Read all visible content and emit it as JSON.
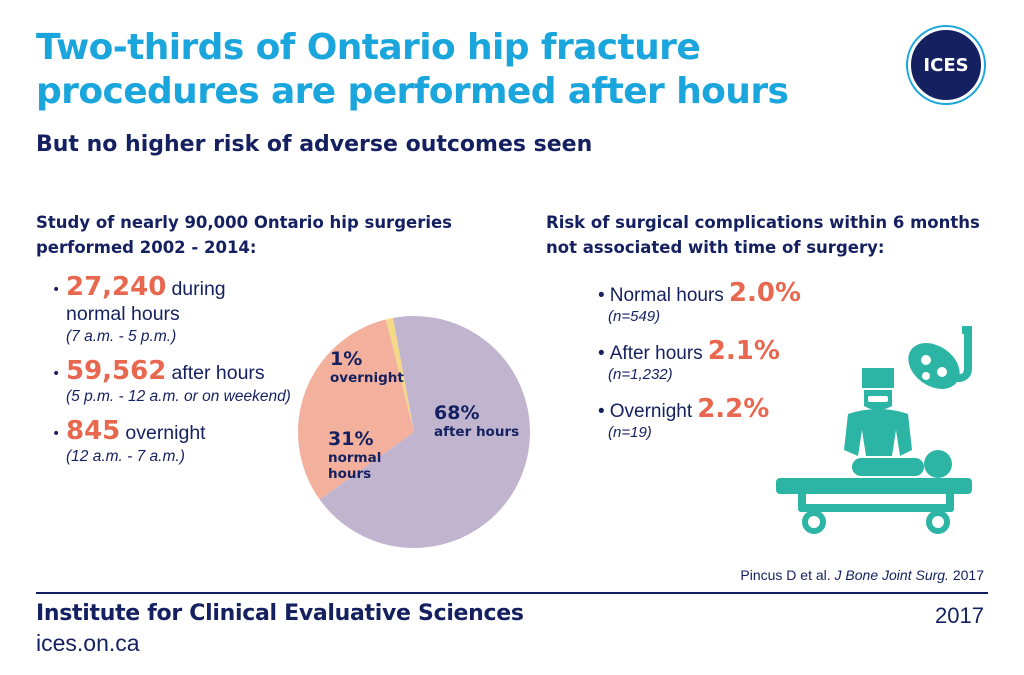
{
  "header": {
    "title": "Two-thirds of Ontario hip fracture procedures are performed after hours",
    "subtitle": "But no higher risk of adverse outcomes seen",
    "logo_text": "ICES"
  },
  "left": {
    "heading_line1": "Study of nearly 90,000 Ontario hip surgeries",
    "heading_line2": "performed 2002 - 2014:",
    "stats": [
      {
        "number": "27,240",
        "label_a": "during",
        "label_b": "normal hours",
        "note": "(7 a.m. - 5 p.m.)"
      },
      {
        "number": "59,562",
        "label_a": "after hours",
        "note": "(5 p.m. - 12 a.m. or on weekend)"
      },
      {
        "number": "845",
        "label_a": "overnight",
        "note": "(12 a.m. - 7 a.m.)"
      }
    ]
  },
  "chart_data": {
    "type": "pie",
    "slices": [
      {
        "pct_label": "68%",
        "label": "after hours",
        "value": 68,
        "color": "#c0b4cf"
      },
      {
        "pct_label": "31%",
        "label_line1": "normal",
        "label_line2": "hours",
        "value": 31,
        "color": "#f2b09d"
      },
      {
        "pct_label": "1%",
        "label": "overnight",
        "value": 1,
        "color": "#f5d987"
      }
    ]
  },
  "right": {
    "heading_line1": "Risk of surgical complications within 6 months",
    "heading_line2": "not associated with time of surgery:",
    "risks": [
      {
        "label": "Normal hours",
        "value": "2.0%",
        "n": "(n=549)"
      },
      {
        "label": "After hours",
        "value": "2.1%",
        "n": "(n=1,232)"
      },
      {
        "label": "Overnight",
        "value": "2.2%",
        "n": "(n=19)"
      }
    ]
  },
  "citation": {
    "authors": "Pincus D et al.",
    "journal": "J Bone Joint Surg.",
    "year": "2017"
  },
  "footer": {
    "org": "Institute for Clinical Evaluative Sciences",
    "url": "ices.on.ca",
    "year": "2017"
  },
  "colors": {
    "accent": "#1aa6dc",
    "navy": "#14205f",
    "highlight": "#e8684f",
    "teal": "#2cb5a5"
  },
  "icons": {
    "surgery": "surgery-scene-icon"
  }
}
